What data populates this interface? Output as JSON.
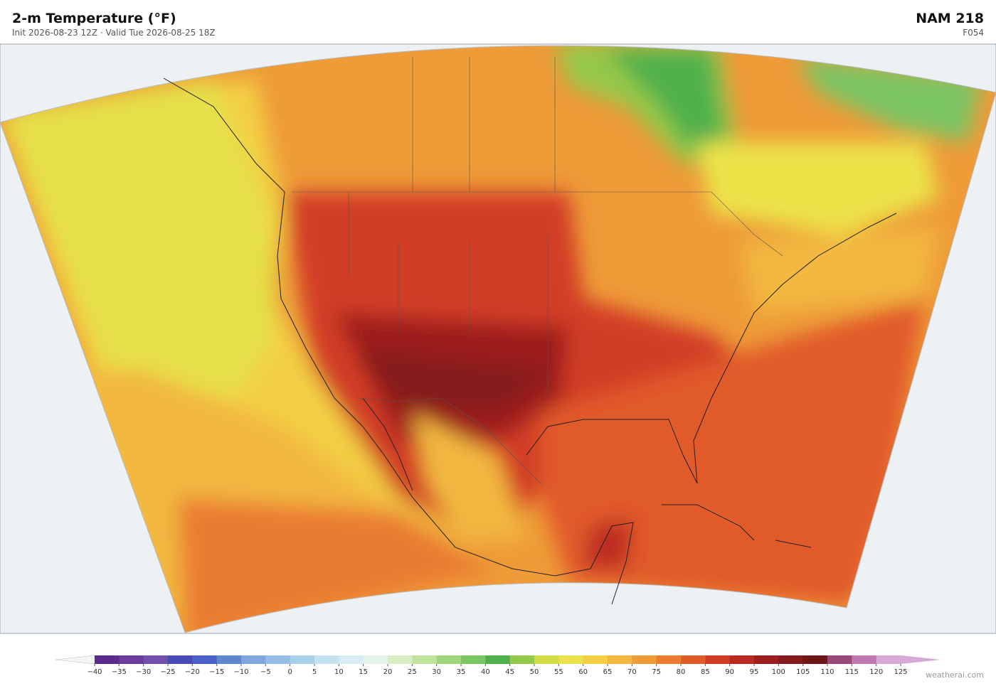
{
  "header": {
    "title": "2-m Temperature  (°F)",
    "subtitle": "Init 2026-08-23 12Z  ·  Valid Tue 2026-08-25 18Z",
    "model": "NAM  218",
    "forecast_hour": "F054"
  },
  "colorbar": {
    "ticks": [
      "−40",
      "−35",
      "−30",
      "−25",
      "−20",
      "−15",
      "−10",
      "−5",
      "0",
      "5",
      "10",
      "15",
      "20",
      "25",
      "30",
      "35",
      "40",
      "45",
      "50",
      "55",
      "60",
      "65",
      "70",
      "75",
      "80",
      "85",
      "90",
      "95",
      "100",
      "105",
      "110",
      "115",
      "120",
      "125"
    ],
    "colors": [
      "#5b2a8c",
      "#6a3d9a",
      "#7050aa",
      "#4b4bb8",
      "#4a62c8",
      "#5f86d0",
      "#7fa6dc",
      "#96bee4",
      "#a9d0ea",
      "#c4e2ef",
      "#d8ecf2",
      "#e4f3ea",
      "#d7edc4",
      "#bfe39d",
      "#a0d67d",
      "#7cc563",
      "#4fb04c",
      "#95c84a",
      "#cfdc48",
      "#ece34a",
      "#f3cf45",
      "#f2b840",
      "#ee9b38",
      "#ea7b30",
      "#e15a2a",
      "#d23d26",
      "#bb2a22",
      "#9e1d1e",
      "#851a1e",
      "#6f1618",
      "#9a4a7a",
      "#bf78b0",
      "#d8a8d4"
    ]
  },
  "footer": {
    "credit": "weatherai.com"
  }
}
